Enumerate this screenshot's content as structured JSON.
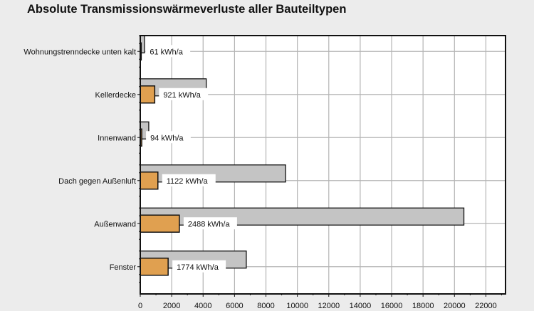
{
  "chart_data": {
    "type": "bar",
    "orientation": "horizontal",
    "title": "Absolute Transmissionswärmeverluste aller Bauteiltypen",
    "categories": [
      "Wohnungstrenndecke unten kalt",
      "Kellerdecke",
      "Innenwand",
      "Dach gegen Außenluft",
      "Außenwand",
      "Fenster"
    ],
    "series": [
      {
        "values": [
          270,
          4200,
          540,
          9250,
          20600,
          6750
        ],
        "color": "#c4c4c4"
      },
      {
        "values": [
          61,
          921,
          94,
          1122,
          2488,
          1774
        ],
        "color": "#e0a050"
      }
    ],
    "data_labels": [
      "61 kWh/a",
      "921 kWh/a",
      "94 kWh/a",
      "1122 kWh/a",
      "2488 kWh/a",
      "1774 kWh/a"
    ],
    "xticks": [
      "0",
      "2000",
      "4000",
      "6000",
      "8000",
      "10000",
      "12000",
      "14000",
      "16000",
      "18000",
      "20000",
      "22000"
    ],
    "xlim": [
      0,
      23250
    ],
    "grid": true
  }
}
